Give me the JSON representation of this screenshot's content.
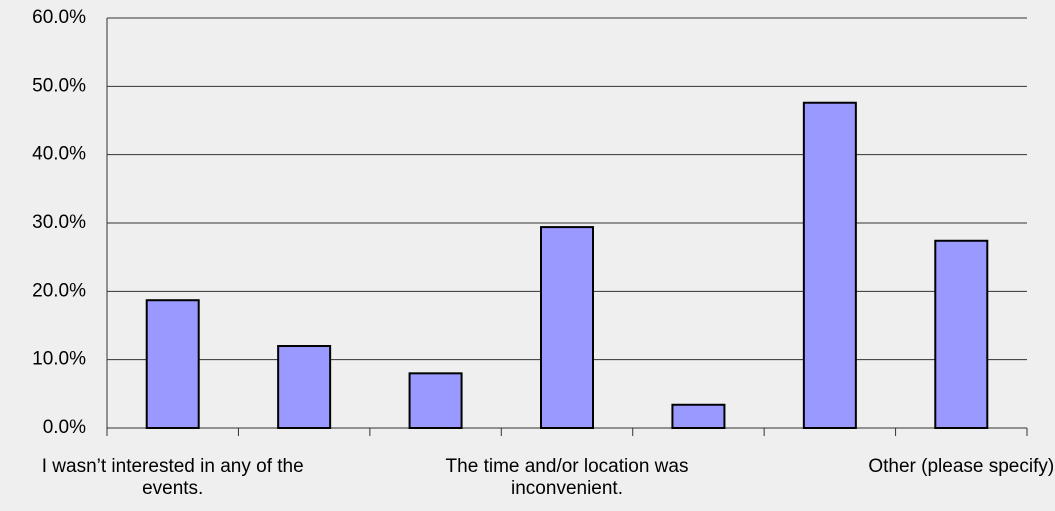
{
  "chart_data": {
    "type": "bar",
    "categories": [
      "I wasn’t interested in any of the events.",
      null,
      null,
      "The time and/or location was inconvenient.",
      null,
      null,
      "Other (please specify)"
    ],
    "values": [
      18.7,
      12.0,
      8.0,
      29.4,
      3.4,
      47.6,
      27.4
    ],
    "color": "#9999ff",
    "ylim": [
      0,
      60
    ],
    "yticks": [
      {
        "value": 0,
        "label": "0.0%"
      },
      {
        "value": 10,
        "label": "10.0%"
      },
      {
        "value": 20,
        "label": "20.0%"
      },
      {
        "value": 30,
        "label": "30.0%"
      },
      {
        "value": 40,
        "label": "40.0%"
      },
      {
        "value": 50,
        "label": "50.0%"
      },
      {
        "value": 60,
        "label": "60.0%"
      }
    ],
    "grid": true
  }
}
